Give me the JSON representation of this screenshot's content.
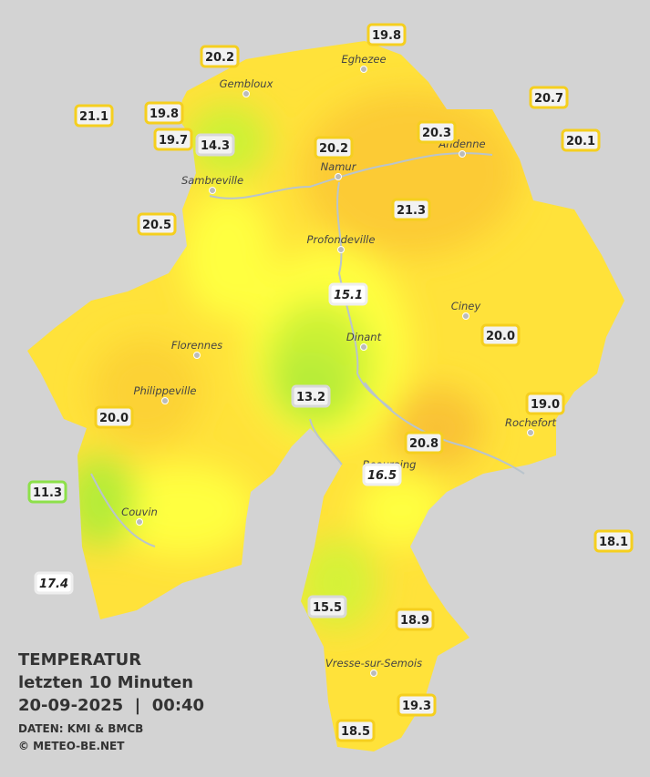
{
  "map": {
    "title": "TEMPERATUR",
    "subtitle": "letzten 10 Minuten",
    "datetime": "20-09-2025  |  00:40",
    "source": "DATEN: KMI & BMCB",
    "copyright": "© METEO-BE.NET",
    "cities": [
      "Eghezee",
      "Gembloux",
      "Andenne",
      "Namur",
      "Sambreville",
      "Profondeville",
      "Ciney",
      "Dinant",
      "Florennes",
      "Philippeville",
      "Rochefort",
      "Beauraing",
      "Couvin",
      "Vresse-sur-Semois"
    ],
    "stations": [
      "19.8",
      "20.2",
      "20.7",
      "21.1",
      "19.8",
      "20.3",
      "20.1",
      "19.7",
      "14.3",
      "20.2",
      "21.3",
      "20.5",
      "15.1",
      "20.0",
      "13.2",
      "19.0",
      "20.0",
      "20.8",
      "16.5",
      "11.3",
      "18.1",
      "17.4",
      "15.5",
      "18.9",
      "19.3",
      "18.5"
    ]
  }
}
